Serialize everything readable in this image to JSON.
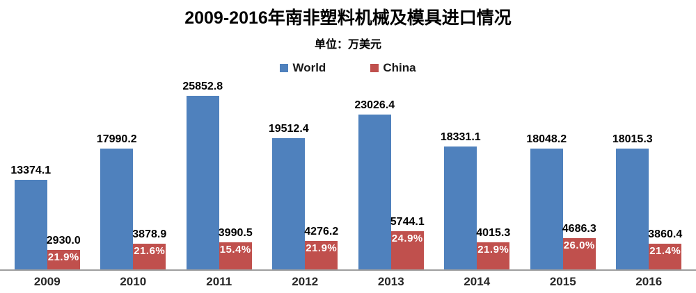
{
  "header": {
    "title": "2009-2016年南非塑料机械及模具进口情况",
    "subtitle": "单位：万美元"
  },
  "chart_data": {
    "type": "bar",
    "title": "2009-2016年南非塑料机械及模具进口情况",
    "subtitle": "单位：万美元",
    "unit": "万美元",
    "categories": [
      "2009",
      "2010",
      "2011",
      "2012",
      "2013",
      "2014",
      "2015",
      "2016"
    ],
    "series": [
      {
        "name": "World",
        "color": "#4F81BD",
        "values": [
          13374.1,
          17990.2,
          25852.8,
          19512.4,
          23026.4,
          18331.1,
          18048.2,
          18015.3
        ]
      },
      {
        "name": "China",
        "color": "#C0504D",
        "values": [
          2930.0,
          3878.9,
          3990.5,
          4276.2,
          5744.1,
          4015.3,
          4686.3,
          3860.4
        ],
        "share_labels": [
          "21.9%",
          "21.6%",
          "15.4%",
          "21.9%",
          "24.9%",
          "21.9%",
          "26.0%",
          "21.4%"
        ]
      }
    ],
    "ylim": [
      0,
      25852.8
    ],
    "grid": false,
    "legend_position": "top",
    "value_labels": "values shown above each bar; China bars also show China share of World (%) in white inside bar top",
    "xlabel": "",
    "ylabel": ""
  },
  "colors": {
    "world_bar": "#4F81BD",
    "china_bar": "#C0504D",
    "axis_line": "#9E9E9E",
    "pct_text": "#FFFFFF",
    "label_text": "#000000",
    "background": "#FFFFFF"
  }
}
